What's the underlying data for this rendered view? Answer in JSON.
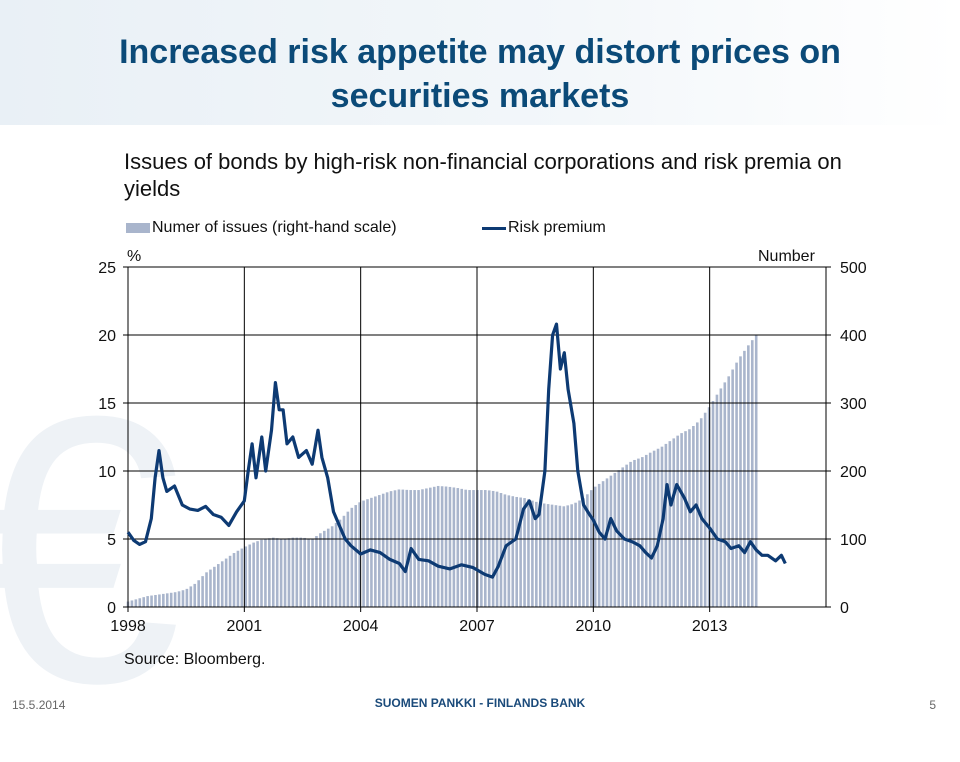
{
  "slide": {
    "title": "Increased risk appetite may distort prices on securities markets",
    "footer_date": "15.5.2014",
    "footer_bank": "SUOMEN PANKKI - FINLANDS BANK",
    "page_number": "5",
    "accent_color": "#0b4a78"
  },
  "chart_data": {
    "type": "bar+line",
    "title": "Issues of bonds by high-risk non-financial corporations and risk premia on yields",
    "left_axis_unit": "%",
    "right_axis_unit": "Number",
    "source": "Source: Bloomberg.",
    "x_ticks": [
      "1998",
      "2001",
      "2004",
      "2007",
      "2010",
      "2013"
    ],
    "x_range": [
      1998,
      2016
    ],
    "left_ylim": [
      0,
      25
    ],
    "left_ticks": [
      "0",
      "5",
      "10",
      "15",
      "20",
      "25"
    ],
    "right_ylim": [
      0,
      500
    ],
    "right_ticks": [
      "0",
      "100",
      "200",
      "300",
      "400",
      "500"
    ],
    "grid": true,
    "legend_position": "top",
    "series": [
      {
        "name": "Numer of issues (right-hand scale)",
        "kind": "bar",
        "axis": "right",
        "color": "#a9b5cc",
        "points": [
          [
            1998.0,
            8
          ],
          [
            1998.25,
            12
          ],
          [
            1998.5,
            16
          ],
          [
            1998.75,
            18
          ],
          [
            1999.0,
            20
          ],
          [
            1999.25,
            22
          ],
          [
            1999.5,
            26
          ],
          [
            1999.75,
            35
          ],
          [
            2000.0,
            50
          ],
          [
            2000.25,
            60
          ],
          [
            2000.5,
            70
          ],
          [
            2000.75,
            80
          ],
          [
            2001.0,
            88
          ],
          [
            2001.25,
            95
          ],
          [
            2001.5,
            100
          ],
          [
            2001.75,
            102
          ],
          [
            2002.0,
            100
          ],
          [
            2002.25,
            102
          ],
          [
            2002.5,
            102
          ],
          [
            2002.75,
            100
          ],
          [
            2003.0,
            110
          ],
          [
            2003.25,
            118
          ],
          [
            2003.5,
            130
          ],
          [
            2003.75,
            145
          ],
          [
            2004.0,
            155
          ],
          [
            2004.25,
            160
          ],
          [
            2004.5,
            165
          ],
          [
            2004.75,
            170
          ],
          [
            2005.0,
            173
          ],
          [
            2005.25,
            172
          ],
          [
            2005.5,
            172
          ],
          [
            2005.75,
            175
          ],
          [
            2006.0,
            178
          ],
          [
            2006.25,
            177
          ],
          [
            2006.5,
            175
          ],
          [
            2006.75,
            172
          ],
          [
            2007.0,
            172
          ],
          [
            2007.25,
            172
          ],
          [
            2007.5,
            170
          ],
          [
            2007.75,
            165
          ],
          [
            2008.0,
            162
          ],
          [
            2008.25,
            160
          ],
          [
            2008.5,
            155
          ],
          [
            2008.75,
            152
          ],
          [
            2009.0,
            150
          ],
          [
            2009.25,
            148
          ],
          [
            2009.5,
            152
          ],
          [
            2009.75,
            160
          ],
          [
            2010.0,
            175
          ],
          [
            2010.25,
            185
          ],
          [
            2010.5,
            195
          ],
          [
            2010.75,
            205
          ],
          [
            2011.0,
            215
          ],
          [
            2011.25,
            220
          ],
          [
            2011.5,
            228
          ],
          [
            2011.75,
            235
          ],
          [
            2012.0,
            245
          ],
          [
            2012.25,
            255
          ],
          [
            2012.5,
            262
          ],
          [
            2012.75,
            275
          ],
          [
            2013.0,
            295
          ],
          [
            2013.25,
            318
          ],
          [
            2013.5,
            340
          ],
          [
            2013.75,
            365
          ],
          [
            2014.0,
            385
          ],
          [
            2014.2,
            400
          ]
        ]
      },
      {
        "name": "Risk premium",
        "kind": "line",
        "axis": "left",
        "color": "#0d3a73",
        "points": [
          [
            1998.0,
            5.5
          ],
          [
            1998.15,
            4.9
          ],
          [
            1998.3,
            4.6
          ],
          [
            1998.45,
            4.8
          ],
          [
            1998.6,
            6.5
          ],
          [
            1998.7,
            9.5
          ],
          [
            1998.8,
            11.5
          ],
          [
            1998.9,
            9.5
          ],
          [
            1999.0,
            8.5
          ],
          [
            1999.2,
            8.9
          ],
          [
            1999.4,
            7.5
          ],
          [
            1999.6,
            7.2
          ],
          [
            1999.8,
            7.1
          ],
          [
            2000.0,
            7.4
          ],
          [
            2000.2,
            6.8
          ],
          [
            2000.4,
            6.6
          ],
          [
            2000.6,
            6.0
          ],
          [
            2000.8,
            7.0
          ],
          [
            2001.0,
            7.8
          ],
          [
            2001.1,
            10.0
          ],
          [
            2001.2,
            12.0
          ],
          [
            2001.3,
            9.5
          ],
          [
            2001.45,
            12.5
          ],
          [
            2001.55,
            10.0
          ],
          [
            2001.7,
            13.0
          ],
          [
            2001.8,
            16.5
          ],
          [
            2001.9,
            14.5
          ],
          [
            2002.0,
            14.5
          ],
          [
            2002.1,
            12.0
          ],
          [
            2002.25,
            12.5
          ],
          [
            2002.4,
            11.0
          ],
          [
            2002.6,
            11.5
          ],
          [
            2002.75,
            10.5
          ],
          [
            2002.9,
            13.0
          ],
          [
            2003.0,
            11.0
          ],
          [
            2003.15,
            9.5
          ],
          [
            2003.3,
            7.0
          ],
          [
            2003.45,
            6.0
          ],
          [
            2003.6,
            5.0
          ],
          [
            2003.75,
            4.5
          ],
          [
            2004.0,
            3.9
          ],
          [
            2004.25,
            4.2
          ],
          [
            2004.5,
            4.0
          ],
          [
            2004.75,
            3.5
          ],
          [
            2005.0,
            3.2
          ],
          [
            2005.15,
            2.6
          ],
          [
            2005.3,
            4.3
          ],
          [
            2005.5,
            3.5
          ],
          [
            2005.75,
            3.4
          ],
          [
            2006.0,
            3.0
          ],
          [
            2006.3,
            2.8
          ],
          [
            2006.6,
            3.1
          ],
          [
            2006.9,
            2.9
          ],
          [
            2007.2,
            2.4
          ],
          [
            2007.4,
            2.2
          ],
          [
            2007.55,
            3.0
          ],
          [
            2007.75,
            4.5
          ],
          [
            2008.0,
            5.0
          ],
          [
            2008.2,
            7.2
          ],
          [
            2008.35,
            7.8
          ],
          [
            2008.5,
            6.5
          ],
          [
            2008.6,
            6.8
          ],
          [
            2008.75,
            10.0
          ],
          [
            2008.85,
            16.0
          ],
          [
            2008.95,
            20.0
          ],
          [
            2009.05,
            20.8
          ],
          [
            2009.15,
            17.5
          ],
          [
            2009.25,
            18.7
          ],
          [
            2009.35,
            16.0
          ],
          [
            2009.5,
            13.5
          ],
          [
            2009.6,
            10.0
          ],
          [
            2009.75,
            7.5
          ],
          [
            2009.9,
            6.8
          ],
          [
            2010.0,
            6.4
          ],
          [
            2010.15,
            5.5
          ],
          [
            2010.3,
            5.0
          ],
          [
            2010.45,
            6.5
          ],
          [
            2010.6,
            5.6
          ],
          [
            2010.8,
            5.0
          ],
          [
            2011.0,
            4.8
          ],
          [
            2011.2,
            4.5
          ],
          [
            2011.35,
            4.0
          ],
          [
            2011.5,
            3.6
          ],
          [
            2011.65,
            4.5
          ],
          [
            2011.8,
            6.5
          ],
          [
            2011.9,
            9.0
          ],
          [
            2012.0,
            7.5
          ],
          [
            2012.15,
            9.0
          ],
          [
            2012.35,
            8.0
          ],
          [
            2012.5,
            7.0
          ],
          [
            2012.65,
            7.5
          ],
          [
            2012.8,
            6.5
          ],
          [
            2013.0,
            5.8
          ],
          [
            2013.2,
            5.0
          ],
          [
            2013.4,
            4.8
          ],
          [
            2013.55,
            4.3
          ],
          [
            2013.75,
            4.5
          ],
          [
            2013.9,
            4.0
          ],
          [
            2014.05,
            4.8
          ],
          [
            2014.2,
            4.2
          ],
          [
            2014.35,
            3.8
          ],
          [
            2014.5,
            3.8
          ],
          [
            2014.7,
            3.4
          ],
          [
            2014.85,
            3.8
          ],
          [
            2014.95,
            3.2
          ]
        ]
      }
    ]
  }
}
